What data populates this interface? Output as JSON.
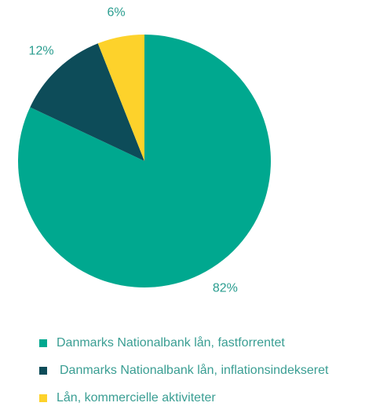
{
  "chart_data": {
    "type": "pie",
    "categories": [
      "Danmarks Nationalbank lån, fastforrentet",
      "Danmarks Nationalbank lån, inflationsindekseret",
      "Lån, kommercielle aktiviteter"
    ],
    "values": [
      82,
      12,
      6
    ],
    "value_labels": [
      "82%",
      "12%",
      "6%"
    ],
    "colors": [
      "#00a88f",
      "#0d4c59",
      "#fdd22b"
    ],
    "legend": "bottom"
  }
}
